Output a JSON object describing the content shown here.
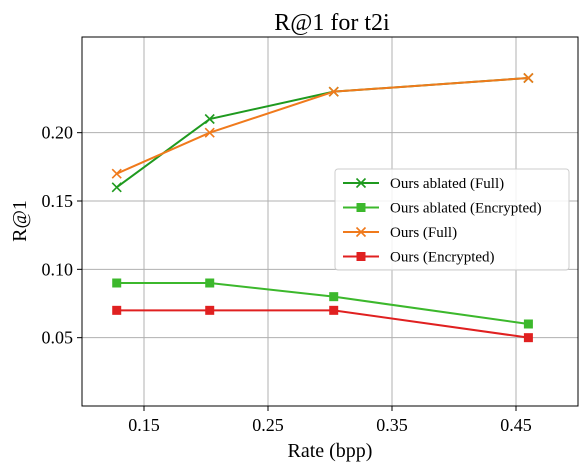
{
  "chart_data": {
    "type": "line",
    "title": "R@1 for t2i",
    "xlabel": "Rate (bpp)",
    "ylabel": "R@1",
    "xlim": [
      0.1,
      0.5
    ],
    "ylim": [
      0.0,
      0.27
    ],
    "xticks": [
      0.15,
      0.25,
      0.35,
      0.45
    ],
    "xtick_labels": [
      "0.15",
      "0.25",
      "0.35",
      "0.45"
    ],
    "yticks": [
      0.05,
      0.1,
      0.15,
      0.2
    ],
    "ytick_labels": [
      "0.05",
      "0.10",
      "0.15",
      "0.20"
    ],
    "grid": true,
    "legend_position": "center-right",
    "series": [
      {
        "name": "Ours ablated (Full)",
        "color": "#1f9a1f",
        "marker": "x",
        "x": [
          0.128,
          0.203,
          0.303,
          0.46
        ],
        "y": [
          0.16,
          0.21,
          0.23,
          0.24
        ]
      },
      {
        "name": "Ours ablated (Encrypted)",
        "color": "#3cb82c",
        "marker": "square",
        "x": [
          0.128,
          0.203,
          0.303,
          0.46
        ],
        "y": [
          0.09,
          0.09,
          0.08,
          0.06
        ]
      },
      {
        "name": "Ours (Full)",
        "color": "#f07a1c",
        "marker": "x",
        "x": [
          0.128,
          0.203,
          0.303,
          0.46
        ],
        "y": [
          0.17,
          0.2,
          0.23,
          0.24
        ]
      },
      {
        "name": "Ours (Encrypted)",
        "color": "#e02020",
        "marker": "square",
        "x": [
          0.128,
          0.203,
          0.303,
          0.46
        ],
        "y": [
          0.07,
          0.07,
          0.07,
          0.05
        ]
      }
    ]
  }
}
